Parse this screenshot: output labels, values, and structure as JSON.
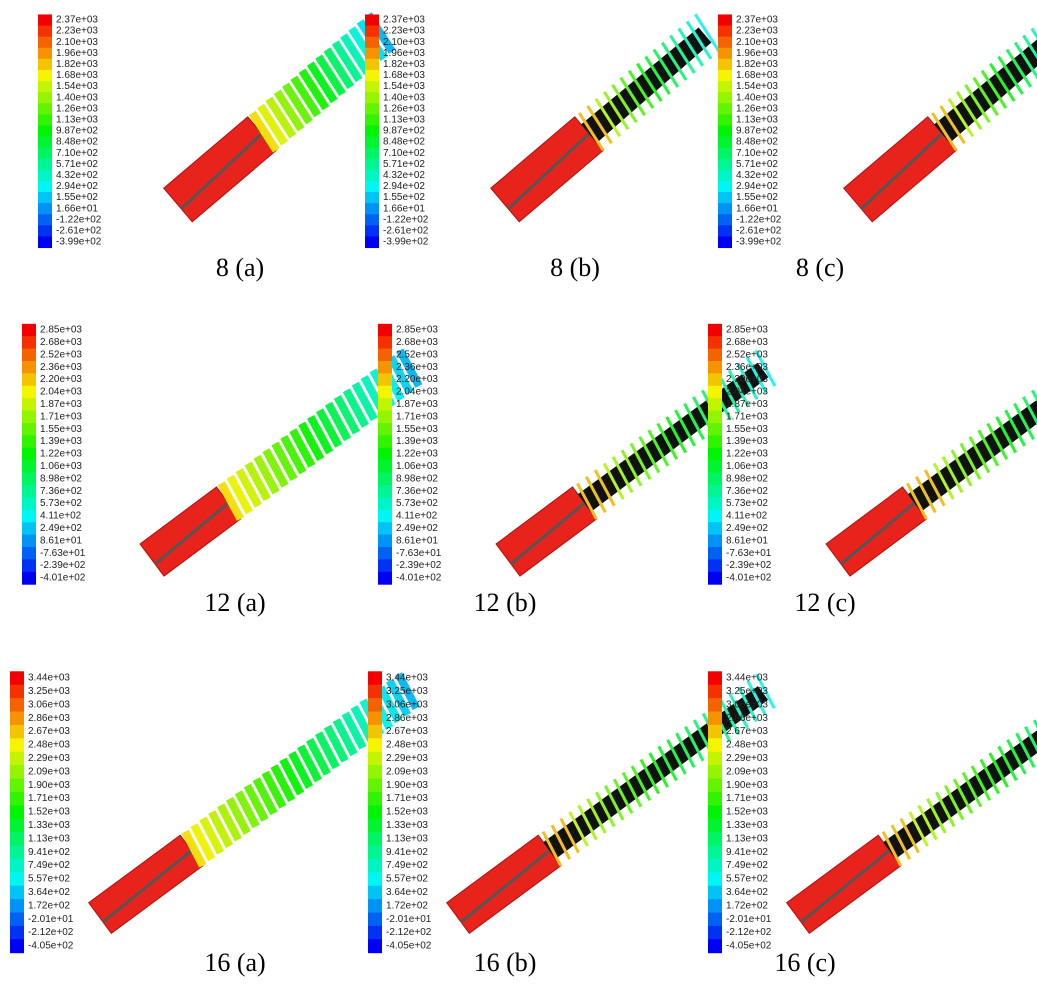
{
  "figure": {
    "rows": [
      {
        "legend_labels": [
          "2.37e+03",
          "2.23e+03",
          "2.10e+03",
          "1.96e+03",
          "1.82e+03",
          "1.68e+03",
          "1.54e+03",
          "1.40e+03",
          "1.26e+03",
          "1.13e+03",
          "9.87e+02",
          "8.48e+02",
          "7.10e+02",
          "5.71e+02",
          "4.32e+02",
          "2.94e+02",
          "1.55e+02",
          "1.66e+01",
          "-1.22e+02",
          "-2.61e+02",
          "-3.99e+02"
        ],
        "panels": [
          {
            "caption": "8 (a)"
          },
          {
            "caption": "8 (b)"
          },
          {
            "caption": "8 (c)"
          }
        ]
      },
      {
        "legend_labels": [
          "2.85e+03",
          "2.68e+03",
          "2.52e+03",
          "2.36e+03",
          "2.20e+03",
          "2.04e+03",
          "1.87e+03",
          "1.71e+03",
          "1.55e+03",
          "1.39e+03",
          "1.22e+03",
          "1.06e+03",
          "8.98e+02",
          "7.36e+02",
          "5.73e+02",
          "4.11e+02",
          "2.49e+02",
          "8.61e+01",
          "-7.63e+01",
          "-2.39e+02",
          "-4.01e+02"
        ],
        "panels": [
          {
            "caption": "12 (a)"
          },
          {
            "caption": "12 (b)"
          },
          {
            "caption": "12 (c)"
          }
        ]
      },
      {
        "legend_labels": [
          "3.44e+03",
          "3.25e+03",
          "3.06e+03",
          "2.86e+03",
          "2.67e+03",
          "2.48e+03",
          "2.29e+03",
          "2.09e+03",
          "1.90e+03",
          "1.71e+03",
          "1.52e+03",
          "1.33e+03",
          "1.13e+03",
          "9.41e+02",
          "7.49e+02",
          "5.57e+02",
          "3.64e+02",
          "1.72e+02",
          "-2.01e+01",
          "-2.12e+02",
          "-4.05e+02"
        ],
        "panels": [
          {
            "caption": "16 (a)"
          },
          {
            "caption": "16 (b)"
          },
          {
            "caption": "16 (c)"
          }
        ]
      }
    ]
  }
}
